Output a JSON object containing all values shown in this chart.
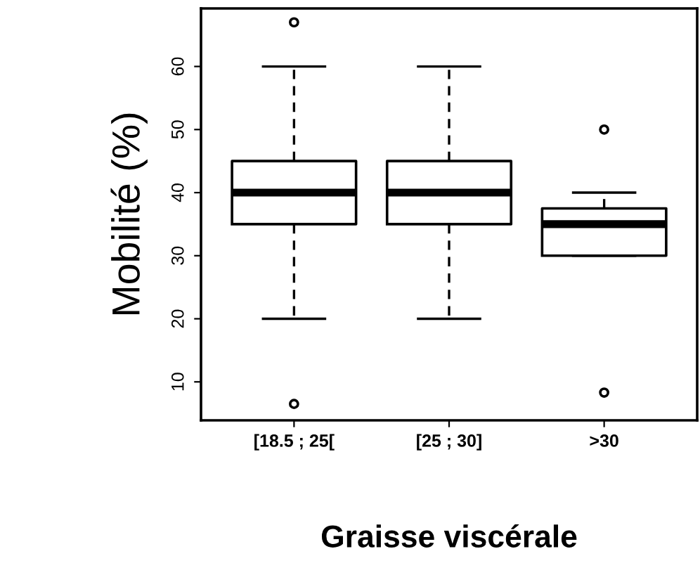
{
  "chart_data": {
    "type": "box",
    "xlabel": "Graisse viscérale",
    "ylabel": "Mobilité (%)",
    "categories": [
      "[18.5 ; 25[",
      "[25 ; 30]",
      ">30"
    ],
    "boxes": [
      {
        "low": 20,
        "q1": 35,
        "median": 40,
        "q3": 45,
        "high": 60,
        "outliers": [
          67,
          6.5
        ]
      },
      {
        "low": 20,
        "q1": 35,
        "median": 40,
        "q3": 45,
        "high": 60
      },
      {
        "low": 30,
        "q1": 30,
        "median": 35,
        "q3": 37.5,
        "high": 40,
        "outliers": [
          50,
          8.3
        ]
      }
    ],
    "ylim": [
      3.9,
      69.2
    ],
    "yticks": [
      10,
      20,
      30,
      40,
      50,
      60
    ],
    "grid": false
  }
}
